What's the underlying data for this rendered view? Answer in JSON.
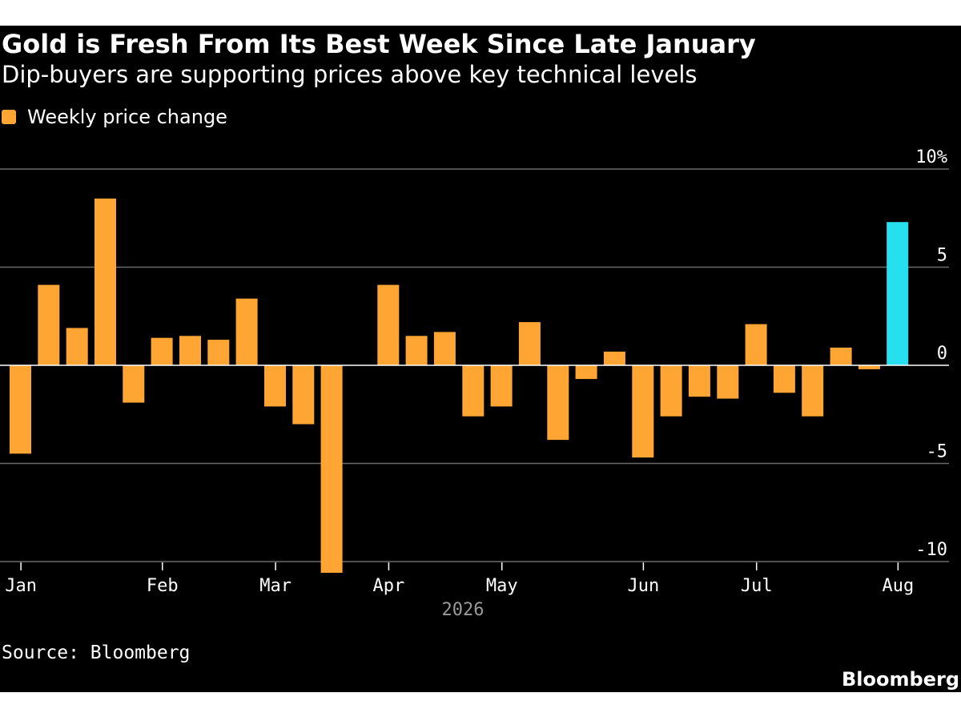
{
  "header": {
    "title": "Gold is Fresh From Its Best Week Since Late January",
    "subtitle": "Dip-buyers are supporting prices above key technical levels"
  },
  "legend": {
    "label": "Weekly price change",
    "color": "#ffa534"
  },
  "colors": {
    "bar": "#ffa534",
    "highlight": "#26e0f0",
    "grid": "#6b6b6b",
    "background": "#000000"
  },
  "footer": {
    "source": "Source: Bloomberg",
    "brand": "Bloomberg"
  },
  "chart_data": {
    "type": "bar",
    "series": [
      {
        "name": "Weekly price change",
        "values": [
          -4.5,
          4.1,
          1.9,
          8.5,
          -1.9,
          1.4,
          1.5,
          1.3,
          3.4,
          -2.1,
          -3.0,
          -10.6,
          0.0,
          4.1,
          1.5,
          1.7,
          -2.6,
          -2.1,
          2.2,
          -3.8,
          -0.7,
          0.7,
          -4.7,
          -2.6,
          -1.6,
          -1.7,
          2.1,
          -1.4,
          -2.6,
          0.9,
          -0.2,
          7.3
        ]
      }
    ],
    "highlight_index": 31,
    "ylim": [
      -10.6,
      10
    ],
    "yticks": [
      10,
      5,
      0,
      -5,
      -10
    ],
    "ytick_labels": [
      "10%",
      "5",
      "0",
      "-5",
      "-10"
    ],
    "xtick_labels": [
      {
        "label": "Jan",
        "week": 0.4
      },
      {
        "label": "Feb",
        "week": 5.4
      },
      {
        "label": "Mar",
        "week": 9.4
      },
      {
        "label": "Apr",
        "week": 13.4
      },
      {
        "label": "May",
        "week": 17.4
      },
      {
        "label": "Jun",
        "week": 22.4
      },
      {
        "label": "Jul",
        "week": 26.4
      },
      {
        "label": "Aug",
        "week": 31.4
      }
    ],
    "xlabel": "2026",
    "grid": true
  }
}
